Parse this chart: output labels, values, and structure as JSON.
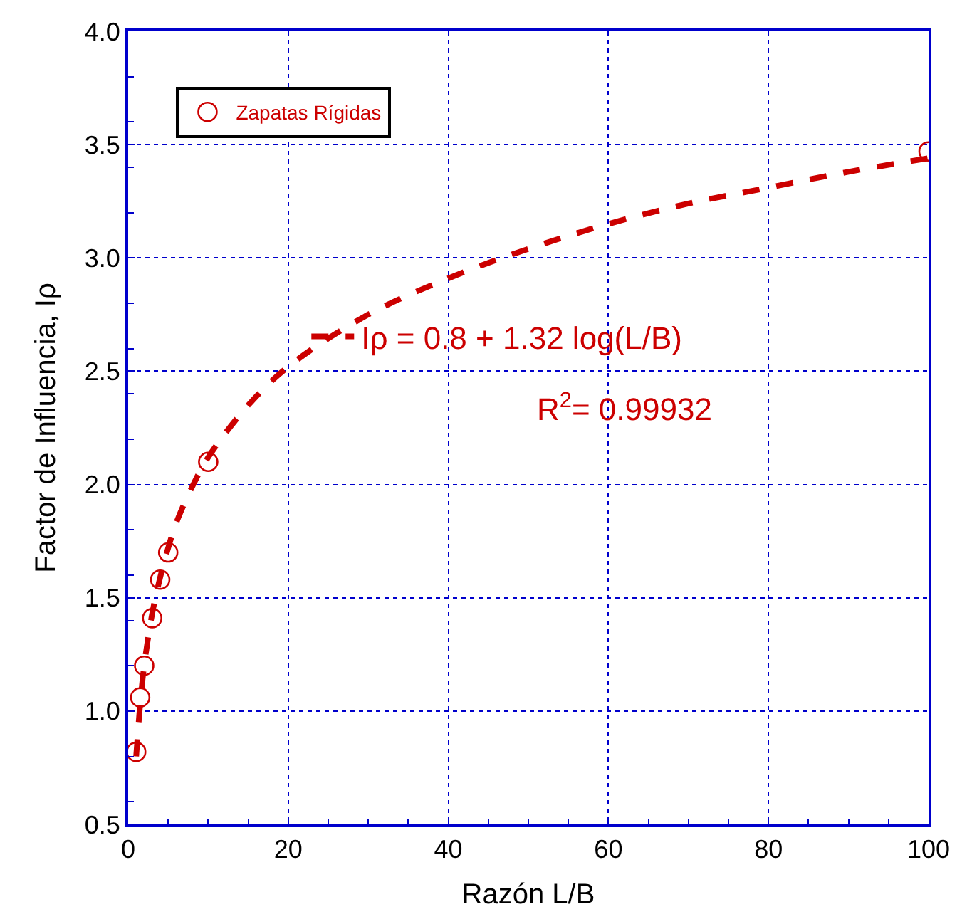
{
  "chart_data": {
    "type": "scatter",
    "xlabel": "Razón L/B",
    "ylabel": "Factor de Influencia, Iρ",
    "xlim": [
      0,
      100
    ],
    "xticks": [
      0,
      20,
      40,
      60,
      80,
      100
    ],
    "ylim": [
      0.5,
      4.0
    ],
    "yticks": [
      {
        "value": 0.5,
        "label": "0.5"
      },
      {
        "value": 1.0,
        "label": "1.0"
      },
      {
        "value": 1.5,
        "label": "1.5"
      },
      {
        "value": 2.0,
        "label": "2.0"
      },
      {
        "value": 2.5,
        "label": "2.5"
      },
      {
        "value": 3.0,
        "label": "3.0"
      },
      {
        "value": 3.5,
        "label": "3.5"
      },
      {
        "value": 4.0,
        "label": "4.0"
      }
    ],
    "grid": true,
    "legend": "top left",
    "marker": "circle",
    "series": [
      {
        "name": "Zapatas Rígidas",
        "color": "#cc0000",
        "x": [
          1,
          1.5,
          2,
          3,
          4,
          5,
          10,
          100
        ],
        "values": [
          0.82,
          1.06,
          1.2,
          1.41,
          1.58,
          1.7,
          2.1,
          3.47
        ]
      },
      {
        "name": "Iρ = 0.8 + 1.32 log(L/B)",
        "color": "#cc0000",
        "type": "line",
        "line_style": "dashed",
        "marker": "none",
        "x": [
          1,
          1.5,
          2,
          3,
          4,
          5,
          6,
          8,
          10,
          15,
          20,
          30,
          40,
          50,
          60,
          70,
          80,
          90,
          100
        ],
        "values": [
          0.8,
          1.03,
          1.2,
          1.43,
          1.59,
          1.72,
          1.83,
          1.99,
          2.12,
          2.35,
          2.52,
          2.75,
          2.91,
          3.04,
          3.15,
          3.24,
          3.31,
          3.38,
          3.44
        ]
      }
    ],
    "annotations": [
      "R$^{2}$= 0.99932"
    ]
  }
}
